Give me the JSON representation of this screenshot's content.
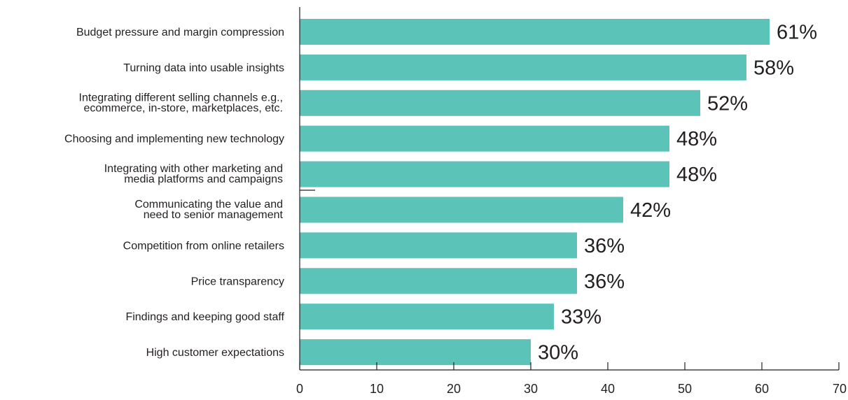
{
  "chart_data": {
    "type": "bar",
    "orientation": "horizontal",
    "categories": [
      [
        "Budget pressure and margin compression"
      ],
      [
        "Turning data into usable insights"
      ],
      [
        "Integrating different selling channels e.g.,",
        "ecommerce, in-store, marketplaces, etc."
      ],
      [
        "Choosing and implementing new technology"
      ],
      [
        "Integrating with other marketing and",
        "media platforms and campaigns"
      ],
      [
        "Communicating the value and",
        "need to senior management"
      ],
      [
        "Competition from online retailers"
      ],
      [
        "Price transparency"
      ],
      [
        "Findings and keeping good staff"
      ],
      [
        "High customer expectations"
      ]
    ],
    "values": [
      61,
      58,
      52,
      48,
      48,
      42,
      36,
      36,
      33,
      30
    ],
    "value_labels": [
      "61%",
      "58%",
      "52%",
      "48%",
      "48%",
      "42%",
      "36%",
      "36%",
      "33%",
      "30%"
    ],
    "xlim": [
      0,
      70
    ],
    "xticks": [
      "0",
      "10",
      "20",
      "30",
      "40",
      "50",
      "60",
      "70"
    ],
    "title": "",
    "xlabel": "",
    "ylabel": "",
    "grid": false,
    "legend": "none",
    "colors": {
      "bar": "#5bc3b8",
      "text": "#231f20",
      "axis": "#231f20"
    }
  }
}
